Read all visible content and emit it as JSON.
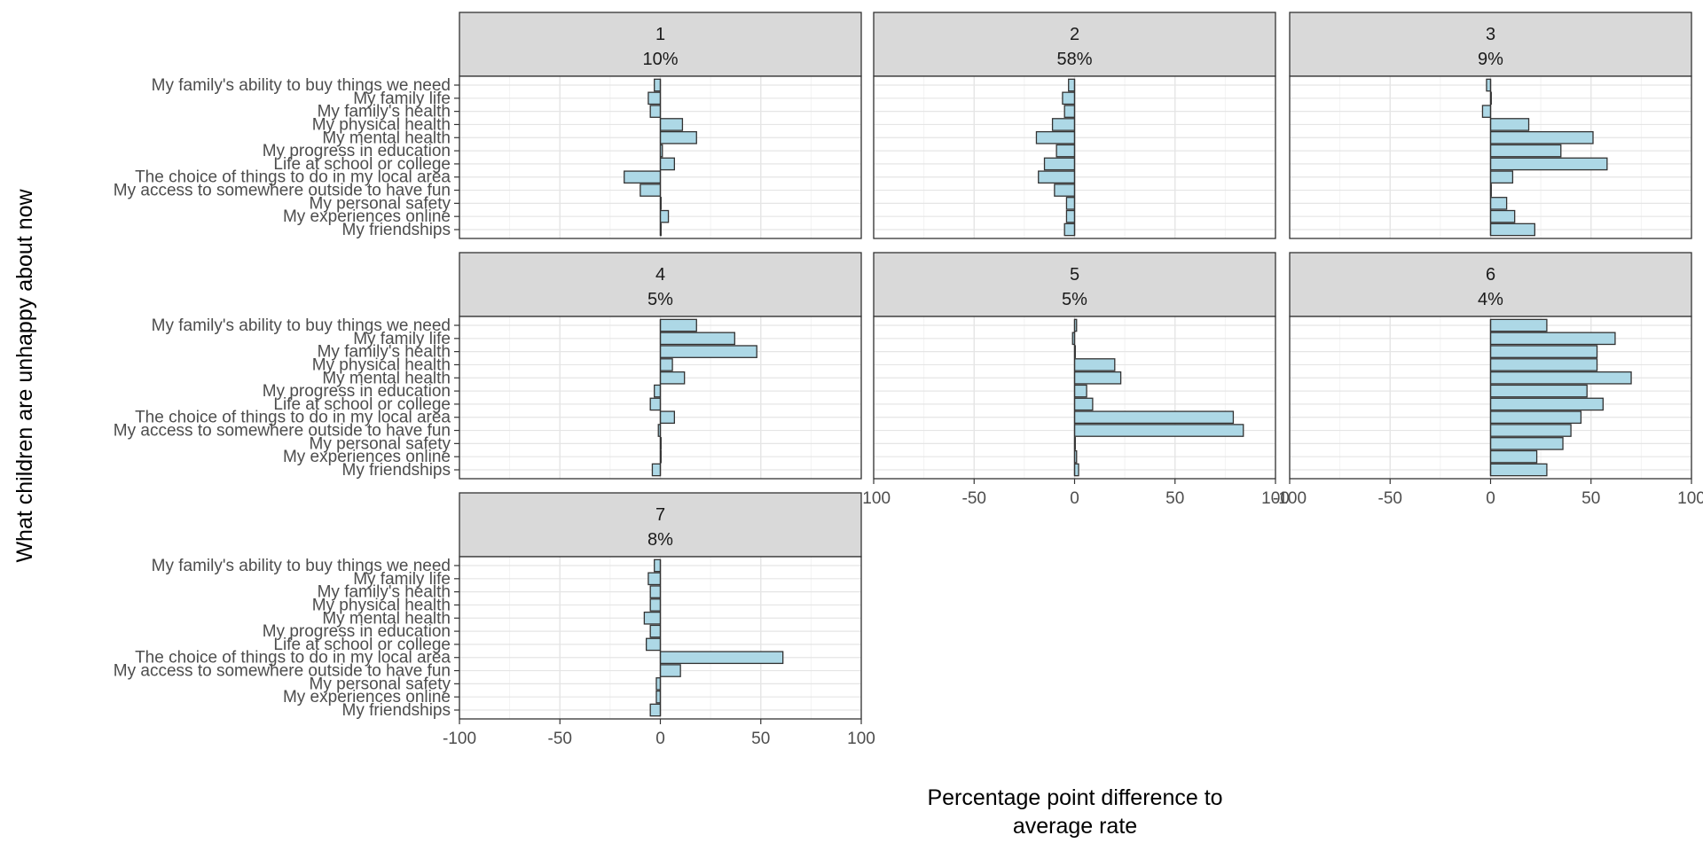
{
  "chart_data": {
    "type": "bar",
    "orientation": "horizontal",
    "faceted": true,
    "facet_columns": 3,
    "xlabel": [
      "Percentage point difference to",
      "average rate"
    ],
    "ylabel": "What children are unhappy about now",
    "xlim": [
      -100,
      100
    ],
    "x_ticks": [
      -100,
      -50,
      0,
      50,
      100
    ],
    "grid": true,
    "bar_fill": "#add8e6",
    "bar_stroke": "#333333",
    "categories": [
      "My family's ability to buy things we need",
      "My family life",
      "My family's health",
      "My physical health",
      "My mental health",
      "My progress in education",
      "Life at school or college",
      "The choice of things to do in my local area",
      "My access to somewhere outside to have fun",
      "My personal safety",
      "My experiences online",
      "My friendships"
    ],
    "panels": [
      {
        "id": "1",
        "share": "10%",
        "values": [
          -3,
          -6,
          -5,
          11,
          18,
          1,
          7,
          -18,
          -10,
          0,
          4,
          0
        ]
      },
      {
        "id": "2",
        "share": "58%",
        "values": [
          -3,
          -6,
          -5,
          -11,
          -19,
          -9,
          -15,
          -18,
          -10,
          -4,
          -4,
          -5
        ]
      },
      {
        "id": "3",
        "share": "9%",
        "values": [
          -2,
          0,
          -4,
          19,
          51,
          35,
          58,
          11,
          0,
          8,
          12,
          22
        ]
      },
      {
        "id": "4",
        "share": "5%",
        "values": [
          18,
          37,
          48,
          6,
          12,
          -3,
          -5,
          7,
          -1,
          0,
          0,
          -4
        ]
      },
      {
        "id": "5",
        "share": "5%",
        "values": [
          1,
          -1,
          0,
          20,
          23,
          6,
          9,
          79,
          84,
          0,
          1,
          2
        ]
      },
      {
        "id": "6",
        "share": "4%",
        "values": [
          28,
          62,
          53,
          53,
          70,
          48,
          56,
          45,
          40,
          36,
          23,
          28
        ]
      },
      {
        "id": "7",
        "share": "8%",
        "values": [
          -3,
          -6,
          -5,
          -5,
          -8,
          -5,
          -7,
          61,
          10,
          -2,
          -2,
          -5
        ]
      }
    ]
  }
}
